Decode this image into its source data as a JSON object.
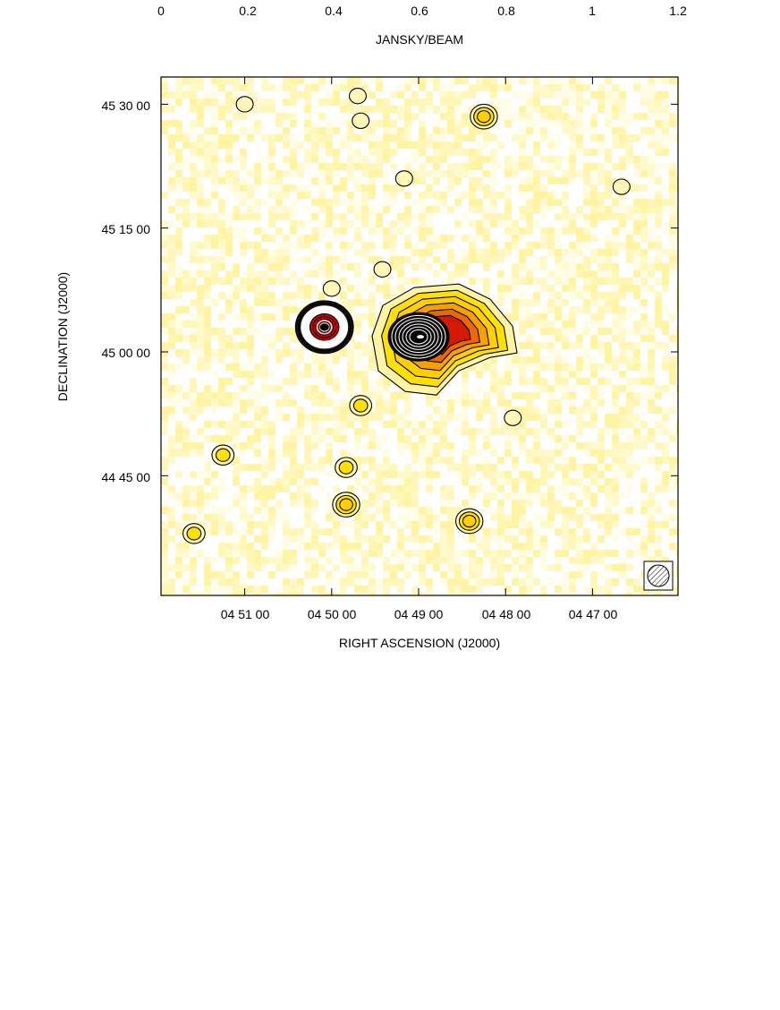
{
  "chart_data": {
    "type": "heatmap",
    "title": "",
    "colorbar": {
      "label": "JANSKY/BEAM",
      "ticks": [
        "0",
        "0.2",
        "0.4",
        "0.6",
        "0.8",
        "1",
        "1.2"
      ],
      "range": [
        0,
        1.2
      ],
      "placement": "top"
    },
    "xlabel": "RIGHT ASCENSION  (J2000)",
    "ylabel": "DECLINATION  (J2000)",
    "x_ticks": [
      "04 51 00",
      "04 50 00",
      "04 49 00",
      "04 48 00",
      "04 47 00"
    ],
    "y_ticks": [
      "45 30 00",
      "45 15 00",
      "45 00 00",
      "44 45 00"
    ],
    "colormap": [
      "#ffffff",
      "#fff7b0",
      "#ffe100",
      "#f4a300",
      "#e35500",
      "#d40000",
      "#f2b8b8",
      "#ffffff"
    ],
    "beam": {
      "shown": true,
      "placement": "bottom-right",
      "style": "hatched ellipse in box"
    },
    "sources": [
      {
        "ra": "04 49 00",
        "dec": "45 01 30",
        "peak": 1.2,
        "extended": true,
        "levels": 16
      },
      {
        "ra": "04 50 05",
        "dec": "45 03 00",
        "peak": 0.9,
        "extended": false,
        "levels": 9
      },
      {
        "ra": "04 48 25",
        "dec": "44 39 30",
        "peak": 0.18,
        "extended": false,
        "levels": 3
      },
      {
        "ra": "04 49 50",
        "dec": "44 41 30",
        "peak": 0.18,
        "extended": false,
        "levels": 3
      },
      {
        "ra": "04 48 15",
        "dec": "45 28 30",
        "peak": 0.16,
        "extended": false,
        "levels": 3
      },
      {
        "ra": "04 49 50",
        "dec": "44 46 00",
        "peak": 0.12,
        "extended": false,
        "levels": 2
      },
      {
        "ra": "04 49 40",
        "dec": "44 53 30",
        "peak": 0.12,
        "extended": false,
        "levels": 2
      },
      {
        "ra": "04 51 35",
        "dec": "44 38 00",
        "peak": 0.1,
        "extended": false,
        "levels": 2
      },
      {
        "ra": "04 51 15",
        "dec": "44 47 30",
        "peak": 0.08,
        "extended": false,
        "levels": 2
      },
      {
        "ra": "04 49 10",
        "dec": "45 21 00",
        "peak": 0.05,
        "extended": false,
        "levels": 1
      },
      {
        "ra": "04 47 55",
        "dec": "44 52 00",
        "peak": 0.05,
        "extended": false,
        "levels": 1
      },
      {
        "ra": "04 50 00",
        "dec": "45 07 40",
        "peak": 0.04,
        "extended": false,
        "levels": 1
      },
      {
        "ra": "04 49 25",
        "dec": "45 10 00",
        "peak": 0.04,
        "extended": false,
        "levels": 1
      },
      {
        "ra": "04 49 42",
        "dec": "45 31 00",
        "peak": 0.04,
        "extended": false,
        "levels": 1
      },
      {
        "ra": "04 49 40",
        "dec": "45 28 00",
        "peak": 0.04,
        "extended": false,
        "levels": 1
      },
      {
        "ra": "04 51 00",
        "dec": "45 30 00",
        "peak": 0.04,
        "extended": false,
        "levels": 1
      },
      {
        "ra": "04 46 40",
        "dec": "45 20 00",
        "peak": 0.03,
        "extended": false,
        "levels": 1
      }
    ]
  }
}
